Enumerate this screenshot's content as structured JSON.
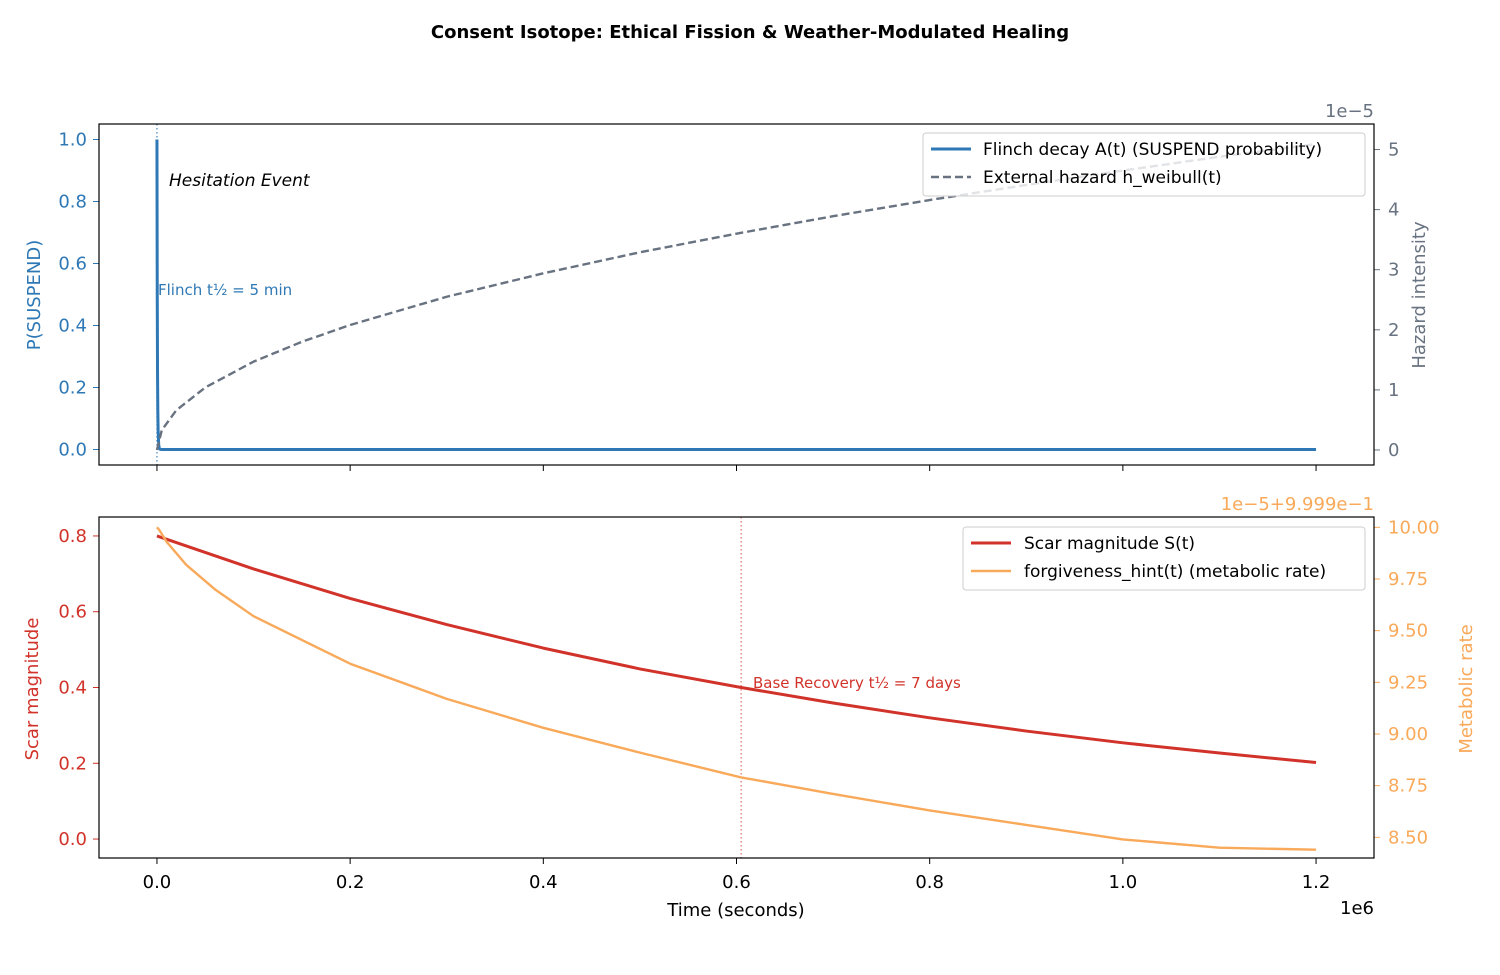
{
  "figure": {
    "title": "Consent Isotope: Ethical Fission & Weather-Modulated Healing"
  },
  "colors": {
    "flinch": "#2e78b5",
    "hazard": "#687280",
    "scar": "#d1332a",
    "forgiveness": "#f9a95a",
    "axis": "#000000"
  },
  "chart_data": [
    {
      "type": "line",
      "panel": "top",
      "xlabel": "",
      "ylabel_left": "P(SUSPEND)",
      "ylabel_right": "Hazard intensity",
      "right_offset_text": "1e−5",
      "xlim": [
        -60000,
        1260000
      ],
      "ylim_left": [
        -0.05,
        1.05
      ],
      "ylim_right": [
        -0.25,
        5.425
      ],
      "xticks": [
        0,
        200000,
        400000,
        600000,
        800000,
        1000000,
        1200000
      ],
      "yticks_left": [
        0.0,
        0.2,
        0.4,
        0.6,
        0.8,
        1.0
      ],
      "ytick_labels_left": [
        "0.0",
        "0.2",
        "0.4",
        "0.6",
        "0.8",
        "1.0"
      ],
      "yticks_right": [
        0,
        1,
        2,
        3,
        4,
        5
      ],
      "ytick_labels_right": [
        "0",
        "1",
        "2",
        "3",
        "4",
        "5"
      ],
      "legend_position": "top-right",
      "series": [
        {
          "name": "Flinch decay A(t) (SUSPEND probability)",
          "axis": "left",
          "style": "solid",
          "x": [
            0,
            300,
            600,
            900,
            1200,
            1800,
            2400,
            3000,
            4500,
            6000,
            10000,
            20000,
            100000,
            400000,
            800000,
            1200000
          ],
          "y": [
            1.0,
            0.5,
            0.25,
            0.125,
            0.0625,
            0.0156,
            0.0039,
            0.001,
            0.0,
            0.0,
            0.0,
            0.0,
            0.0,
            0.0,
            0.0,
            0.0
          ]
        },
        {
          "name": "External hazard h_weibull(t)",
          "axis": "right",
          "style": "dashed",
          "x": [
            0,
            5000,
            20000,
            50000,
            100000,
            150000,
            200000,
            300000,
            400000,
            500000,
            600000,
            700000,
            800000,
            900000,
            1000000,
            1100000,
            1200000
          ],
          "y": [
            0,
            0.33,
            0.66,
            1.04,
            1.47,
            1.8,
            2.08,
            2.55,
            2.94,
            3.29,
            3.6,
            3.89,
            4.16,
            4.41,
            4.65,
            4.88,
            5.09
          ]
        }
      ],
      "annotations": [
        {
          "text": "Hesitation Event",
          "style": "italic"
        },
        {
          "text": "Flinch t½ = 5 min"
        }
      ],
      "vline_x": 0
    },
    {
      "type": "line",
      "panel": "bottom",
      "xlabel": "Time (seconds)",
      "x_offset_text": "1e6",
      "ylabel_left": "Scar magnitude",
      "ylabel_right": "Metabolic rate",
      "right_offset_text": "1e−5+9.999e−1",
      "xlim": [
        -60000,
        1260000
      ],
      "ylim_left": [
        -0.05,
        0.85
      ],
      "ylim_right": [
        8.4,
        10.05
      ],
      "xticks": [
        0,
        200000,
        400000,
        600000,
        800000,
        1000000,
        1200000
      ],
      "xtick_labels": [
        "0.0",
        "0.2",
        "0.4",
        "0.6",
        "0.8",
        "1.0",
        "1.2"
      ],
      "yticks_left": [
        0.0,
        0.2,
        0.4,
        0.6,
        0.8
      ],
      "ytick_labels_left": [
        "0.0",
        "0.2",
        "0.4",
        "0.6",
        "0.8"
      ],
      "yticks_right": [
        8.5,
        8.75,
        9.0,
        9.25,
        9.5,
        9.75,
        10.0
      ],
      "ytick_labels_right": [
        "8.50",
        "8.75",
        "9.00",
        "9.25",
        "9.50",
        "9.75",
        "10.00"
      ],
      "legend_position": "top-right",
      "series": [
        {
          "name": "Scar magnitude S(t)",
          "axis": "left",
          "style": "solid",
          "x": [
            0,
            100000,
            200000,
            300000,
            400000,
            500000,
            604800,
            700000,
            800000,
            900000,
            1000000,
            1100000,
            1200000
          ],
          "y": [
            0.8,
            0.713,
            0.635,
            0.566,
            0.504,
            0.449,
            0.4,
            0.359,
            0.32,
            0.285,
            0.254,
            0.227,
            0.202
          ]
        },
        {
          "name": "forgiveness_hint(t) (metabolic rate)",
          "axis": "right",
          "style": "solid",
          "x": [
            0,
            2000,
            10000,
            30000,
            60000,
            100000,
            200000,
            300000,
            400000,
            500000,
            604800,
            700000,
            800000,
            900000,
            1000000,
            1100000,
            1200000
          ],
          "y": [
            10.0,
            9.99,
            9.93,
            9.82,
            9.7,
            9.57,
            9.34,
            9.17,
            9.03,
            8.91,
            8.79,
            8.71,
            8.63,
            8.56,
            8.49,
            8.45,
            8.44
          ]
        }
      ],
      "annotations": [
        {
          "text": "Base Recovery t½ = 7 days"
        }
      ],
      "vline_x": 604800
    }
  ]
}
